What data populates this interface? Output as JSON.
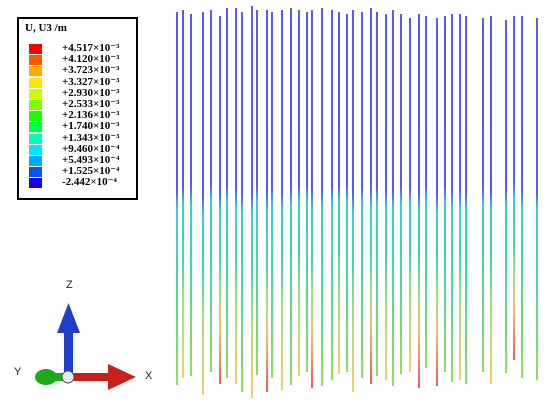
{
  "legend": {
    "title": "U, U3 /m",
    "levels": [
      "+4.517×10⁻³",
      "+4.120×10⁻³",
      "+3.723×10⁻³",
      "+3.327×10⁻³",
      "+2.930×10⁻³",
      "+2.533×10⁻³",
      "+2.136×10⁻³",
      "+1.740×10⁻³",
      "+1.343×10⁻³",
      "+9.460×10⁻⁴",
      "+5.493×10⁻⁴",
      "+1.525×10⁻⁴",
      "-2.442×10⁻⁴"
    ],
    "colors": [
      "#ff0000",
      "#ff5a00",
      "#ffaa00",
      "#ffe600",
      "#ccff00",
      "#7cff00",
      "#1cff00",
      "#00ff4a",
      "#00ffb4",
      "#00e6ff",
      "#00aaff",
      "#0055ff",
      "#1a00e6"
    ]
  },
  "triad": {
    "z": "Z",
    "y": "Y",
    "x": "X"
  }
}
